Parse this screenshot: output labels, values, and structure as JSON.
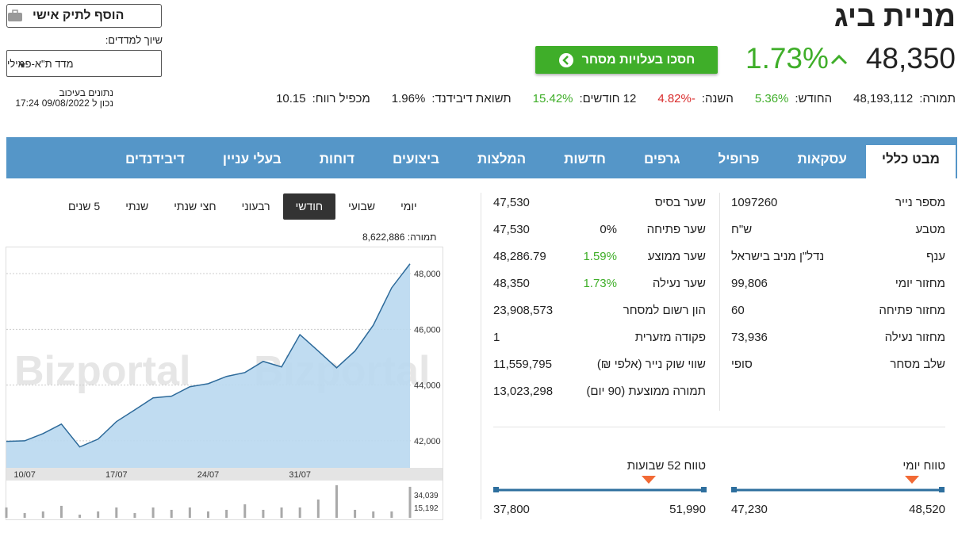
{
  "header": {
    "title": "מניית ביג",
    "price": "48,350",
    "change": "1.73%",
    "trade_button": "חסכו בעלויות מסחר",
    "add_button": "הוסף לתיק אישי",
    "index_label": "שיוך למדדים:",
    "index_select": "מדד ת\"א-פמילי",
    "delay_note": "נתונים בעיכוב",
    "timestamp": "נכון ל 09/08/2022 17:24"
  },
  "stats": [
    {
      "label": "תמורה:",
      "value": "48,193,112"
    },
    {
      "label": "החודש:",
      "value": "5.36%",
      "color": "#3fae29"
    },
    {
      "label": "השנה:",
      "value": "-4.82%",
      "color": "#d92b2b"
    },
    {
      "label": "12 חודשים:",
      "value": "15.42%",
      "color": "#3fae29"
    },
    {
      "label": "תשואת דיבידנד:",
      "value": "1.96%"
    },
    {
      "label": "מכפיל רווח:",
      "value": "10.15"
    }
  ],
  "tabs": [
    "מבט כללי",
    "עסקאות",
    "פרופיל",
    "גרפים",
    "חדשות",
    "המלצות",
    "ביצועים",
    "דוחות",
    "בעלי עניין",
    "דיבידנדים"
  ],
  "periods": [
    "יומי",
    "שבועי",
    "חודשי",
    "רבעוני",
    "חצי שנתי",
    "שנתי",
    "5 שנים"
  ],
  "turnover": {
    "label": "תמורה:",
    "value": "8,622,886"
  },
  "watermark": "Bizportal",
  "details_right": [
    {
      "label": "מספר נייר",
      "value": "1097260"
    },
    {
      "label": "מטבע",
      "value": "ש\"ח"
    },
    {
      "label": "ענף",
      "value": "נדל\"ן מניב בישראל"
    },
    {
      "label": "מחזור יומי",
      "value": "99,806"
    },
    {
      "label": "מחזור פתיחה",
      "value": "60"
    },
    {
      "label": "מחזור נעילה",
      "value": "73,936"
    },
    {
      "label": "שלב מסחר",
      "value": "סופי"
    }
  ],
  "details_mid": [
    {
      "label": "שער בסיס",
      "value": "47,530"
    },
    {
      "label": "שער פתיחה",
      "change": "0%",
      "value": "47,530"
    },
    {
      "label": "שער ממוצע",
      "change": "1.59%",
      "value": "48,286.79"
    },
    {
      "label": "שער נעילה",
      "change": "1.73%",
      "value": "48,350"
    },
    {
      "label": "הון רשום למסחר",
      "value": "23,908,573"
    },
    {
      "label": "פקודה מזערית",
      "value": "1"
    },
    {
      "label": "שווי שוק נייר (אלפי ₪)",
      "value": "11,559,795"
    },
    {
      "label": "תמורה ממוצעת (90 יום)",
      "value": "13,023,298"
    }
  ],
  "ranges": [
    {
      "label": "טווח יומי",
      "low": "47,230",
      "high": "48,520"
    },
    {
      "label": "טווח 52 שבועות",
      "low": "37,800",
      "high": "51,990"
    }
  ],
  "chart_data": {
    "type": "line",
    "categories": [
      null,
      "10/07",
      null,
      null,
      null,
      null,
      "17/07",
      null,
      null,
      null,
      null,
      "24/07",
      null,
      null,
      null,
      null,
      "31/07",
      null,
      null,
      null,
      null,
      null,
      null
    ],
    "values": [
      41980,
      42000,
      42260,
      42600,
      41780,
      42060,
      42690,
      43110,
      43540,
      43600,
      43940,
      44050,
      44310,
      44450,
      44850,
      44650,
      45810,
      45220,
      44620,
      45220,
      46150,
      47490,
      48350
    ],
    "color": "#2d6a9a",
    "fill": "#b9d8ef",
    "ylim": [
      41030,
      48940
    ],
    "yticks": [
      {
        "value": 42000,
        "label": "42,000"
      },
      {
        "value": 44000,
        "label": "44,000"
      },
      {
        "value": 46000,
        "label": "46,000"
      },
      {
        "value": 48000,
        "label": "48,000"
      }
    ],
    "grid": true,
    "volume": {
      "values": [
        15300,
        7000,
        9400,
        17700,
        4700,
        9400,
        15300,
        7000,
        15300,
        11800,
        15300,
        9400,
        11800,
        20000,
        11800,
        15300,
        15300,
        27100,
        48300,
        11800,
        9400,
        9400,
        45900
      ],
      "color": "#a9a9a9",
      "ylim": [
        0,
        50500
      ],
      "yticks": [
        {
          "value": 15192,
          "label": "15,192"
        },
        {
          "value": 34039,
          "label": "34,039"
        }
      ]
    }
  }
}
